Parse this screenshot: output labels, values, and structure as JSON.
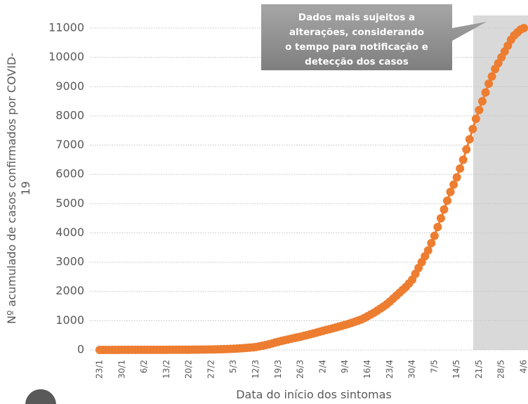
{
  "chart_data": {
    "type": "line",
    "ylabel": [
      "Nº acumulado de casos confirmados por COVID-",
      "19"
    ],
    "xlabel": "Data do início dos sintomas",
    "annotation": [
      "Dados mais sujeitos a",
      "alterações, considerando",
      "o tempo para notificação e",
      "detecção dos casos"
    ],
    "color": "#ed7d31",
    "ylim": [
      0,
      11000
    ],
    "yticks": [
      0,
      1000,
      2000,
      3000,
      4000,
      5000,
      6000,
      7000,
      8000,
      9000,
      10000,
      11000
    ],
    "grid": true,
    "categories": [
      "23/1",
      null,
      null,
      null,
      null,
      null,
      null,
      "30/1",
      null,
      null,
      null,
      null,
      null,
      null,
      "6/2",
      null,
      null,
      null,
      null,
      null,
      null,
      "13/2",
      null,
      null,
      null,
      null,
      null,
      null,
      "20/2",
      null,
      null,
      null,
      null,
      null,
      null,
      "27/2",
      null,
      null,
      null,
      null,
      null,
      null,
      "5/3",
      null,
      null,
      null,
      null,
      null,
      null,
      "12/3",
      null,
      null,
      null,
      null,
      null,
      null,
      "19/3",
      null,
      null,
      null,
      null,
      null,
      null,
      "26/3",
      null,
      null,
      null,
      null,
      null,
      null,
      "2/4",
      null,
      null,
      null,
      null,
      null,
      null,
      "9/4",
      null,
      null,
      null,
      null,
      null,
      null,
      "16/4",
      null,
      null,
      null,
      null,
      null,
      null,
      "23/4",
      null,
      null,
      null,
      null,
      null,
      null,
      "30/4",
      null,
      null,
      null,
      null,
      null,
      null,
      "7/5",
      null,
      null,
      null,
      null,
      null,
      null,
      "14/5",
      null,
      null,
      null,
      null,
      null,
      null,
      "21/5",
      null,
      null,
      null,
      null,
      null,
      null,
      "28/5",
      null,
      null,
      null,
      null,
      null,
      null,
      "4/6"
    ],
    "values": [
      1,
      1,
      1,
      1,
      1,
      1,
      1,
      2,
      2,
      2,
      2,
      2,
      2,
      2,
      3,
      3,
      3,
      3,
      3,
      4,
      4,
      4,
      5,
      5,
      5,
      6,
      6,
      7,
      7,
      8,
      9,
      10,
      11,
      12,
      14,
      16,
      18,
      20,
      23,
      26,
      30,
      35,
      40,
      46,
      53,
      60,
      68,
      77,
      88,
      100,
      120,
      140,
      165,
      190,
      220,
      250,
      280,
      305,
      330,
      355,
      380,
      405,
      430,
      450,
      480,
      505,
      535,
      560,
      590,
      620,
      650,
      680,
      705,
      735,
      765,
      795,
      825,
      855,
      890,
      925,
      960,
      1000,
      1040,
      1090,
      1150,
      1210,
      1270,
      1340,
      1410,
      1480,
      1560,
      1650,
      1750,
      1850,
      1950,
      2050,
      2150,
      2270,
      2400,
      2600,
      2800,
      3000,
      3200,
      3400,
      3650,
      3900,
      4200,
      4500,
      4800,
      5100,
      5400,
      5650,
      5900,
      6200,
      6500,
      6850,
      7200,
      7550,
      7900,
      8200,
      8500,
      8800,
      9100,
      9350,
      9600,
      9800,
      10000,
      10200,
      10400,
      10600,
      10750,
      10850,
      10950,
      11000
    ]
  }
}
